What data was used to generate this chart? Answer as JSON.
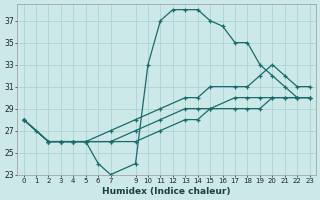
{
  "xlabel": "Humidex (Indice chaleur)",
  "bg_color": "#cce8e8",
  "grid_color": "#aad4d4",
  "line_color": "#1a6b6b",
  "xlim": [
    -0.5,
    23.5
  ],
  "ylim": [
    23,
    38.5
  ],
  "xticks": [
    0,
    1,
    2,
    3,
    4,
    5,
    6,
    7,
    9,
    10,
    11,
    12,
    13,
    14,
    15,
    16,
    17,
    18,
    19,
    20,
    21,
    22,
    23
  ],
  "yticks": [
    23,
    25,
    27,
    29,
    31,
    33,
    35,
    37
  ],
  "line1_x": [
    0,
    1,
    2,
    3,
    4,
    5,
    6,
    7,
    9,
    10,
    11,
    12,
    13,
    14,
    15,
    16,
    17,
    18,
    19,
    20,
    21,
    22,
    23
  ],
  "line1_y": [
    28,
    27,
    26,
    26,
    26,
    26,
    24,
    23,
    24,
    33,
    37,
    38,
    38,
    38,
    37,
    36.5,
    35,
    35,
    33,
    32,
    31,
    30,
    30
  ],
  "line2_x": [
    0,
    2,
    3,
    4,
    5,
    7,
    9,
    11,
    13,
    14,
    15,
    17,
    18,
    19,
    20,
    21,
    22,
    23
  ],
  "line2_y": [
    28,
    26,
    26,
    26,
    26,
    27,
    28,
    29,
    30,
    30,
    31,
    31,
    31,
    32,
    33,
    32,
    31,
    31
  ],
  "line3_x": [
    0,
    2,
    3,
    4,
    5,
    7,
    9,
    11,
    13,
    14,
    15,
    17,
    18,
    19,
    20,
    21,
    22,
    23
  ],
  "line3_y": [
    28,
    26,
    26,
    26,
    26,
    26,
    27,
    28,
    29,
    29,
    29,
    30,
    30,
    30,
    30,
    30,
    30,
    30
  ],
  "line4_x": [
    0,
    2,
    3,
    4,
    5,
    7,
    9,
    11,
    13,
    14,
    15,
    17,
    18,
    19,
    20,
    21,
    22,
    23
  ],
  "line4_y": [
    28,
    26,
    26,
    26,
    26,
    26,
    26,
    27,
    28,
    28,
    29,
    29,
    29,
    29,
    30,
    30,
    30,
    30
  ]
}
